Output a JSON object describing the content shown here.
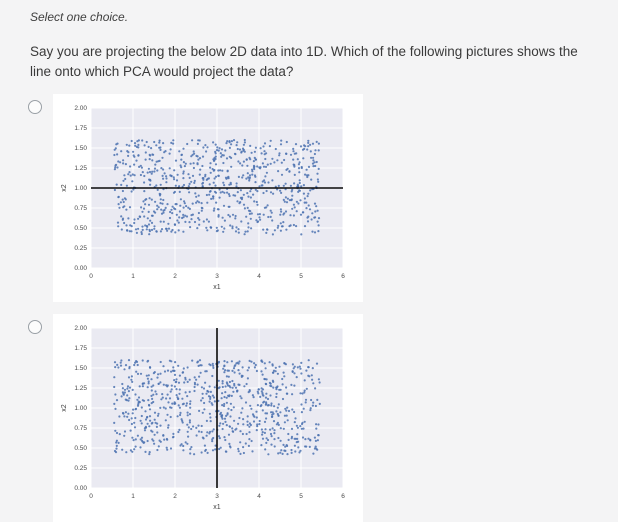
{
  "page": {
    "instruction": "Select one choice.",
    "question": "Say you are projecting the below 2D data into 1D. Which of the following pictures shows the line onto which PCA would project the data?"
  },
  "options": [
    {
      "id": "option-1",
      "selected": false,
      "content": "scatter plot with horizontal PCA projection line at x2 = 1.0"
    },
    {
      "id": "option-2",
      "selected": false,
      "content": "scatter plot with vertical line at x1 = 3"
    }
  ],
  "chart_data": [
    {
      "type": "scatter",
      "title": "",
      "xlabel": "x1",
      "ylabel": "x2",
      "xlim": [
        0,
        6
      ],
      "ylim": [
        0,
        2
      ],
      "xticks": [
        0,
        1,
        2,
        3,
        4,
        5,
        6
      ],
      "xtick_labels": [
        "0",
        "1",
        "2",
        "3",
        "4",
        "5",
        "6"
      ],
      "yticks": [
        0,
        0.25,
        0.5,
        0.75,
        1,
        1.25,
        1.5,
        1.75,
        2
      ],
      "ytick_labels": [
        "0.00",
        "0.25",
        "0.50",
        "0.75",
        "1.00",
        "1.25",
        "1.50",
        "1.75",
        "2.00"
      ],
      "grid": true,
      "plot_background": "#eaeaf2",
      "grid_color": "#ffffff",
      "point_color": "#4c72b0",
      "scatter": {
        "n": 800,
        "x_range": [
          0.55,
          5.45
        ],
        "y_range": [
          0.42,
          1.6
        ],
        "seed": 42,
        "distribution": "uniform"
      },
      "overlay_line": {
        "orientation": "horizontal",
        "value": 1.0,
        "color": "#0a0a0a"
      }
    },
    {
      "type": "scatter",
      "title": "",
      "xlabel": "x1",
      "ylabel": "x2",
      "xlim": [
        0,
        6
      ],
      "ylim": [
        0,
        2
      ],
      "xticks": [
        0,
        1,
        2,
        3,
        4,
        5,
        6
      ],
      "xtick_labels": [
        "0",
        "1",
        "2",
        "3",
        "4",
        "5",
        "6"
      ],
      "yticks": [
        0,
        0.25,
        0.5,
        0.75,
        1,
        1.25,
        1.5,
        1.75,
        2
      ],
      "ytick_labels": [
        "0.00",
        "0.25",
        "0.50",
        "0.75",
        "1.00",
        "1.25",
        "1.50",
        "1.75",
        "2.00"
      ],
      "grid": true,
      "plot_background": "#eaeaf2",
      "grid_color": "#ffffff",
      "point_color": "#4c72b0",
      "scatter": {
        "n": 800,
        "x_range": [
          0.55,
          5.45
        ],
        "y_range": [
          0.42,
          1.6
        ],
        "seed": 7,
        "distribution": "uniform"
      },
      "overlay_line": {
        "orientation": "vertical",
        "value": 3.0,
        "color": "#0a0a0a"
      }
    }
  ]
}
